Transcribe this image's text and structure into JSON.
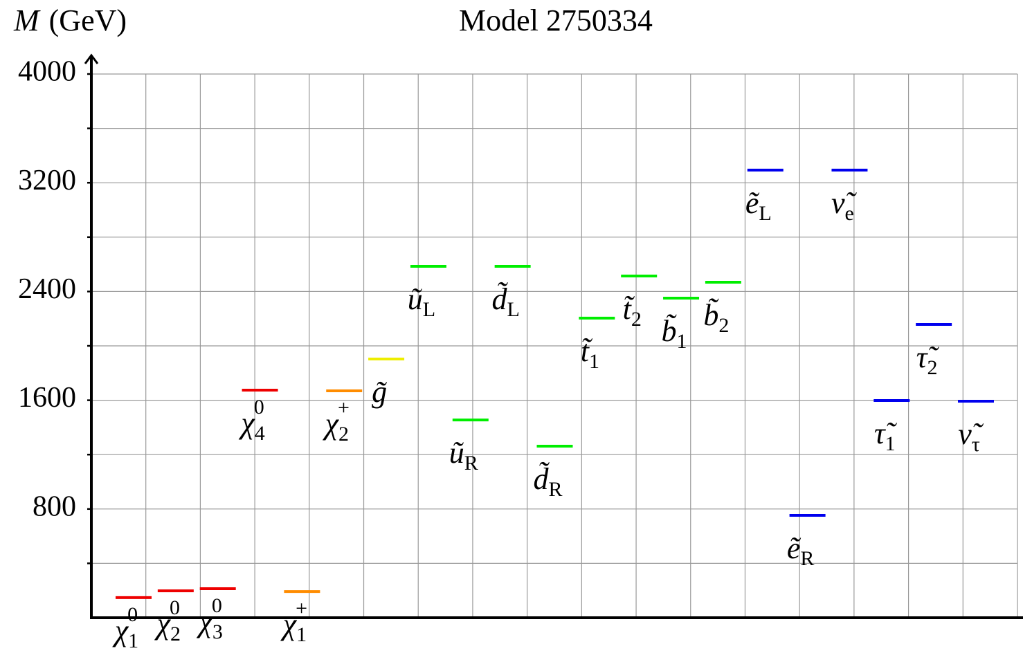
{
  "chart_data": {
    "type": "spectrum",
    "title": "Model 2750334",
    "ylabel": {
      "symbol": "M",
      "unit": "(GeV)"
    },
    "ylim": [
      0,
      4000
    ],
    "yticks": [
      800,
      1600,
      2400,
      3200,
      4000
    ],
    "yminor": [
      400,
      1200,
      2000,
      2800,
      3600
    ],
    "grid": true,
    "particles": [
      {
        "base": "χ",
        "sub": "1",
        "sup": "0",
        "value": 148,
        "color": "#ee0000"
      },
      {
        "base": "χ",
        "sub": "2",
        "sup": "0",
        "value": 198,
        "color": "#ee0000"
      },
      {
        "base": "χ",
        "sub": "3",
        "sup": "0",
        "value": 214,
        "color": "#ee0000"
      },
      {
        "base": "χ",
        "sub": "4",
        "sup": "0",
        "value": 1674,
        "color": "#ee0000"
      },
      {
        "base": "χ",
        "sub": "1",
        "sup": "+",
        "value": 193,
        "color": "#ff8c00"
      },
      {
        "base": "χ",
        "sub": "2",
        "sup": "+",
        "value": 1669,
        "color": "#ff8c00"
      },
      {
        "base": "g̃",
        "value": 1903,
        "color": "#eeee00"
      },
      {
        "base": "ũ",
        "sub": "L",
        "value": 2585,
        "color": "#00ee00"
      },
      {
        "base": "ũ",
        "sub": "R",
        "value": 1455,
        "color": "#00ee00"
      },
      {
        "base": "d̃",
        "sub": "L",
        "value": 2585,
        "color": "#00ee00"
      },
      {
        "base": "d̃",
        "sub": "R",
        "value": 1262,
        "color": "#00ee00"
      },
      {
        "base": "t̃",
        "sub": "1",
        "value": 2204,
        "color": "#00ee00"
      },
      {
        "base": "t̃",
        "sub": "2",
        "value": 2514,
        "color": "#00ee00"
      },
      {
        "base": "b̃",
        "sub": "1",
        "value": 2351,
        "color": "#00ee00"
      },
      {
        "base": "b̃",
        "sub": "2",
        "value": 2468,
        "color": "#00ee00"
      },
      {
        "base": "ẽ",
        "sub": "L",
        "value": 3293,
        "color": "#0000ee"
      },
      {
        "base": "ẽ",
        "sub": "R",
        "value": 753,
        "color": "#0000ee"
      },
      {
        "base": "ν̃",
        "sub": "e",
        "value": 3293,
        "color": "#0000ee"
      },
      {
        "base": "τ̃",
        "sub": "1",
        "value": 1598,
        "color": "#0000ee"
      },
      {
        "base": "τ̃",
        "sub": "2",
        "value": 2158,
        "color": "#0000ee"
      },
      {
        "base": "ν̃",
        "sub": "τ",
        "value": 1593,
        "color": "#0000ee"
      }
    ]
  }
}
